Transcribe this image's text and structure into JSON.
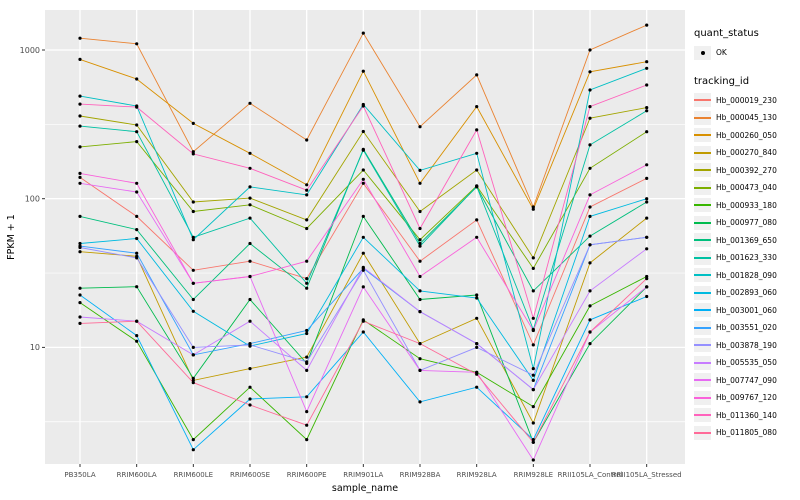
{
  "legend": {
    "quant_status_title": "quant_status",
    "quant_status_value": "OK",
    "tracking_id_title": "tracking_id"
  },
  "chart_data": {
    "type": "line",
    "title": "",
    "xlabel": "sample_name",
    "ylabel": "FPKM + 1",
    "y_scale": "log10",
    "ylim": [
      1.6,
      1900
    ],
    "y_ticks": [
      1000,
      100,
      10
    ],
    "y_minor": [
      316.2,
      31.62,
      3.162
    ],
    "grid": true,
    "legend_position": "right",
    "panel_bg": "#EBEBEB",
    "grid_color": "#FFFFFF",
    "tick_text_color": "#4D4D4D",
    "point_color": "#000000",
    "point_legend_label": "OK",
    "categories": [
      "PB350LA",
      "RRIM600LA",
      "RRIM600LE",
      "RRIM600SE",
      "RRIM600PE",
      "RRIM901LA",
      "RRIM928BA",
      "RRIM928LA",
      "RRIM928LE",
      "RRII105LA_Control",
      "RRII105LA_Stressed"
    ],
    "series": [
      {
        "name": "Hb_000019_230",
        "color": "#F8766D",
        "values": [
          139,
          76,
          33,
          38,
          29,
          127,
          38,
          72,
          10.4,
          88,
          137
        ]
      },
      {
        "name": "Hb_000045_130",
        "color": "#EA8331",
        "values": [
          1200,
          1100,
          207,
          438,
          248,
          1300,
          305,
          680,
          88,
          1000,
          1470
        ]
      },
      {
        "name": "Hb_000260_050",
        "color": "#D89000",
        "values": [
          865,
          638,
          321,
          202,
          124,
          720,
          127,
          416,
          85,
          714,
          834
        ]
      },
      {
        "name": "Hb_000270_840",
        "color": "#C09B00",
        "values": [
          44,
          41,
          6,
          7.2,
          8.6,
          43,
          10.6,
          15.7,
          3.1,
          37,
          74
        ]
      },
      {
        "name": "Hb_000392_270",
        "color": "#A3A500",
        "values": [
          360,
          313,
          95,
          101,
          72,
          283,
          82,
          156,
          40,
          348,
          410
        ]
      },
      {
        "name": "Hb_000473_040",
        "color": "#7CAE00",
        "values": [
          223,
          242,
          82,
          91,
          63,
          156,
          53,
          122,
          34,
          160,
          282
        ]
      },
      {
        "name": "Hb_000933_180",
        "color": "#39B600",
        "values": [
          20,
          11,
          2.4,
          5.4,
          2.4,
          15.3,
          8.4,
          6.8,
          4,
          19,
          30
        ]
      },
      {
        "name": "Hb_000977_080",
        "color": "#00BB4E",
        "values": [
          25,
          25.6,
          6.2,
          21,
          7.8,
          76,
          21,
          22.5,
          2.3,
          10.6,
          25.5
        ]
      },
      {
        "name": "Hb_001369_650",
        "color": "#00BF7D",
        "values": [
          76,
          62,
          21,
          50,
          25,
          215,
          50,
          120,
          24,
          56,
          95
        ]
      },
      {
        "name": "Hb_001623_330",
        "color": "#00C1A3",
        "values": [
          308,
          282,
          55,
          74,
          27,
          212,
          48,
          121,
          13.2,
          230,
          390
        ]
      },
      {
        "name": "Hb_001828_090",
        "color": "#00BFC4",
        "values": [
          490,
          420,
          53,
          120,
          106,
          430,
          155,
          202,
          7.2,
          538,
          753
        ]
      },
      {
        "name": "Hb_002893_060",
        "color": "#00BAE0",
        "values": [
          50,
          54,
          17.5,
          10.2,
          12.4,
          55,
          24,
          21.5,
          6,
          76,
          100
        ]
      },
      {
        "name": "Hb_003001_060",
        "color": "#00B0F6",
        "values": [
          22.5,
          12,
          2.05,
          4.5,
          4.65,
          12.7,
          4.3,
          5.4,
          2.4,
          15.3,
          22
        ]
      },
      {
        "name": "Hb_003551_020",
        "color": "#35A2FF",
        "values": [
          48,
          43,
          8.9,
          10.6,
          13,
          34,
          17.4,
          10.6,
          5.2,
          49,
          55
        ]
      },
      {
        "name": "Hb_003878_190",
        "color": "#9590FF",
        "values": [
          47,
          40,
          10,
          10.4,
          8,
          33,
          7,
          10,
          6.5,
          49,
          55
        ]
      },
      {
        "name": "Hb_005535_050",
        "color": "#C77CFF",
        "values": [
          16,
          15,
          8.9,
          15,
          7,
          34.5,
          17.4,
          10.6,
          5.2,
          24,
          46
        ]
      },
      {
        "name": "Hb_007747_090",
        "color": "#E76BF3",
        "values": [
          127,
          111,
          27,
          30,
          3.7,
          25.5,
          7,
          6.8,
          1.75,
          12.7,
          25.5
        ]
      },
      {
        "name": "Hb_009767_120",
        "color": "#FA62DB",
        "values": [
          148,
          127,
          27,
          30,
          38,
          135,
          30,
          55,
          13,
          106,
          169
        ]
      },
      {
        "name": "Hb_011360_140",
        "color": "#FF62BC",
        "values": [
          433,
          413,
          200,
          160,
          114,
          420,
          63,
          290,
          15.7,
          416,
          582
        ]
      },
      {
        "name": "Hb_011805_080",
        "color": "#FF6A98",
        "values": [
          14.5,
          15,
          5.8,
          4.1,
          3,
          15,
          10.6,
          6.6,
          2.3,
          12.7,
          29
        ]
      }
    ]
  }
}
